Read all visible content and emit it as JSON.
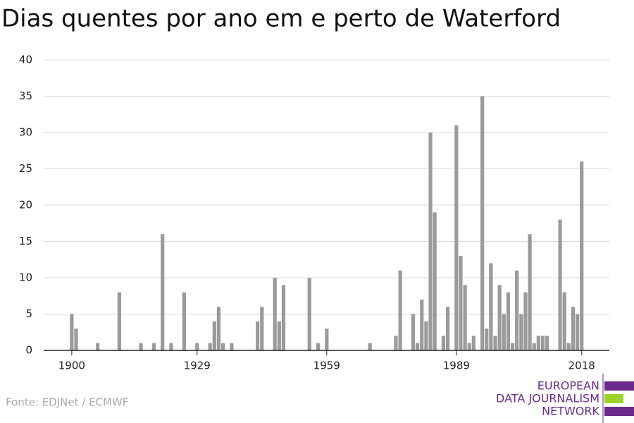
{
  "chart_data": {
    "type": "bar",
    "title": "Dias quentes por ano em e perto de Waterford",
    "source": "Fonte: EDJNet / ECMWF",
    "logo": [
      "EUROPEAN",
      "DATA JOURNALISM",
      "NETWORK"
    ],
    "color": "#9b9b9b",
    "x": [
      1900,
      1901,
      1906,
      1911,
      1916,
      1919,
      1921,
      1923,
      1926,
      1929,
      1932,
      1933,
      1934,
      1935,
      1937,
      1943,
      1944,
      1947,
      1948,
      1949,
      1955,
      1957,
      1959,
      1969,
      1975,
      1976,
      1979,
      1980,
      1981,
      1982,
      1983,
      1984,
      1986,
      1987,
      1989,
      1990,
      1991,
      1992,
      1993,
      1995,
      1996,
      1997,
      1998,
      1999,
      2000,
      2001,
      2002,
      2003,
      2004,
      2005,
      2006,
      2007,
      2008,
      2009,
      2010,
      2013,
      2014,
      2015,
      2016,
      2017,
      2018
    ],
    "values": [
      5,
      3,
      1,
      8,
      1,
      1,
      16,
      1,
      8,
      1,
      1,
      4,
      6,
      1,
      1,
      4,
      6,
      10,
      4,
      9,
      10,
      1,
      3,
      1,
      2,
      11,
      5,
      1,
      7,
      4,
      30,
      19,
      2,
      6,
      31,
      13,
      9,
      1,
      2,
      35,
      3,
      12,
      2,
      9,
      5,
      8,
      1,
      11,
      5,
      8,
      16,
      1,
      2,
      2,
      2,
      18,
      8,
      1,
      6,
      5,
      26
    ],
    "xlim": [
      1893.5,
      2024.4
    ],
    "xticks": [
      1900,
      1929,
      1959,
      1989,
      2018
    ],
    "ylim": [
      0,
      40
    ],
    "yticks": [
      0,
      5,
      10,
      15,
      20,
      25,
      30,
      35,
      40
    ],
    "grid": true
  }
}
